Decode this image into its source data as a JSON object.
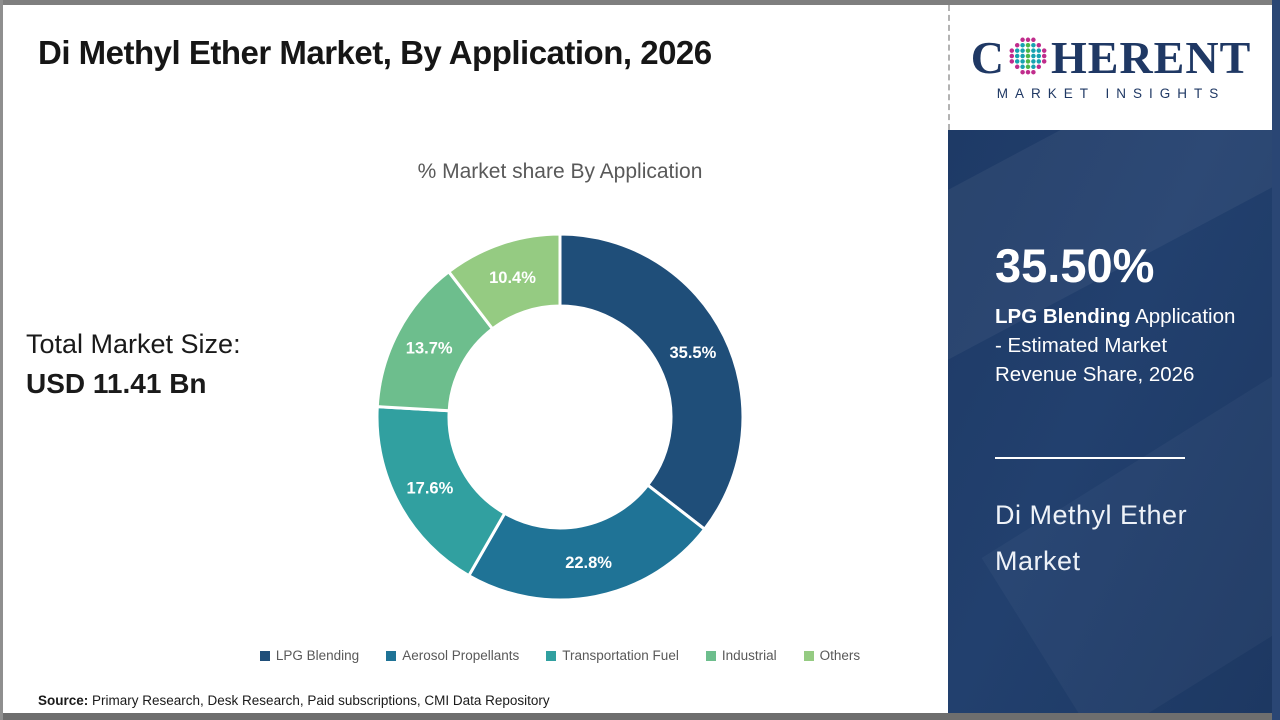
{
  "header": {
    "title": "Di Methyl Ether Market, By Application, 2026"
  },
  "logo": {
    "c": "C",
    "rest": "HERENT",
    "subtext": "MARKET INSIGHTS",
    "navy": "#1f3864",
    "dot_colors": {
      "teal": "#17a2b0",
      "green": "#4cb748",
      "magenta": "#c02c8c"
    }
  },
  "chart_data": {
    "type": "pie",
    "donut": true,
    "title": "% Market share By Application",
    "categories": [
      "LPG Blending",
      "Aerosol Propellants",
      "Transportation Fuel",
      "Industrial",
      "Others"
    ],
    "values": [
      35.5,
      22.8,
      17.6,
      13.7,
      10.4
    ],
    "labels": [
      "35.5%",
      "22.8%",
      "17.6%",
      "13.7%",
      "10.4%"
    ],
    "colors": [
      "#1f4e79",
      "#1f7396",
      "#31a0a0",
      "#6dbe8d",
      "#95cb82"
    ],
    "start_angle_deg": 0,
    "direction": "clockwise",
    "inner_radius_ratio": 0.6,
    "legend_position": "bottom",
    "label_color": "#ffffff"
  },
  "total_market": {
    "label": "Total Market Size:",
    "value": "USD 11.41 Bn"
  },
  "sidebar": {
    "stat": "35.50%",
    "stat_bold": "LPG Blending",
    "stat_rest": " Application - Estimated Market Revenue Share, 2026",
    "market_name": "Di Methyl Ether Market",
    "bg": "#1e3a66"
  },
  "source": {
    "label": "Source:",
    "text": " Primary Research, Desk Research, Paid subscriptions, CMI Data Repository"
  }
}
